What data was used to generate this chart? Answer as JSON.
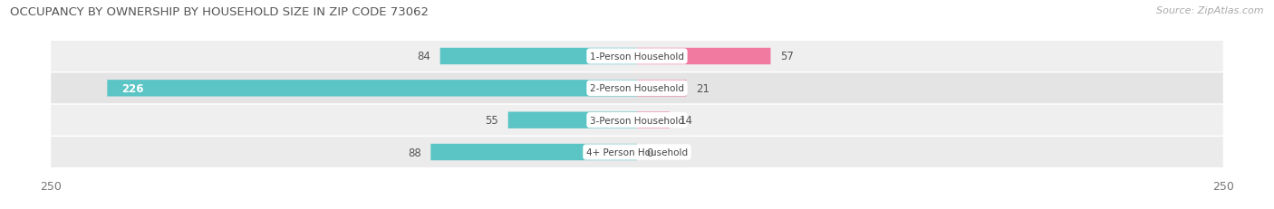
{
  "title": "OCCUPANCY BY OWNERSHIP BY HOUSEHOLD SIZE IN ZIP CODE 73062",
  "source": "Source: ZipAtlas.com",
  "categories": [
    "1-Person Household",
    "2-Person Household",
    "3-Person Household",
    "4+ Person Household"
  ],
  "owner_values": [
    84,
    226,
    55,
    88
  ],
  "renter_values": [
    57,
    21,
    14,
    0
  ],
  "owner_color": "#5bc4c4",
  "renter_color": "#f07aa0",
  "row_bg_colors": [
    "#efefef",
    "#e4e4e4",
    "#efefef",
    "#ebebeb"
  ],
  "axis_max": 250,
  "title_fontsize": 9.5,
  "source_fontsize": 8,
  "background_color": "#ffffff",
  "value_label_fontsize": 8.5,
  "category_label_fontsize": 7.5
}
